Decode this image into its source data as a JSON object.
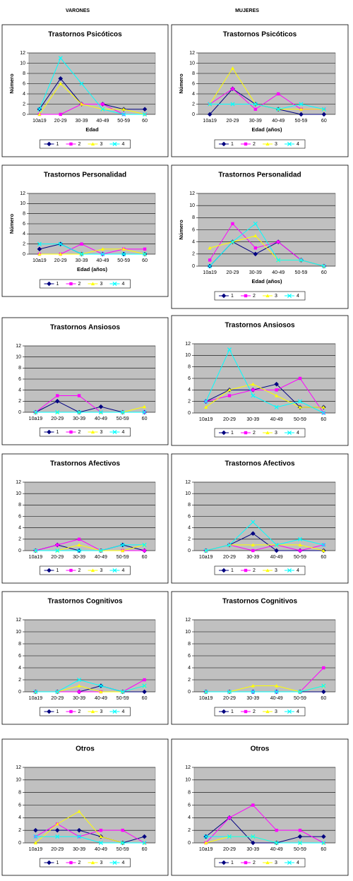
{
  "headers": {
    "left": "VARONES",
    "right": "MUJERES"
  },
  "chart_data": [
    {
      "type": "line",
      "title": "Trastornos Psicóticos",
      "ylabel": "Número",
      "xlabel": "Edad",
      "categories": [
        "10a19",
        "20-29",
        "30-39",
        "40-49",
        "50-59",
        "60"
      ],
      "ylim": [
        0,
        12
      ],
      "yticks": [
        0,
        2,
        4,
        6,
        8,
        10,
        12
      ],
      "grid": true,
      "series": [
        {
          "name": "1",
          "color": "#000080",
          "values": [
            1,
            7,
            2,
            2,
            1,
            1
          ]
        },
        {
          "name": "2",
          "color": "#ff00ff",
          "values": [
            0,
            0,
            2,
            2,
            0,
            0
          ]
        },
        {
          "name": "3",
          "color": "#ffff00",
          "values": [
            0,
            6,
            2,
            1,
            1,
            0
          ]
        },
        {
          "name": "4",
          "color": "#00ffff",
          "values": [
            1,
            11,
            6,
            1,
            0,
            0
          ]
        }
      ]
    },
    {
      "type": "line",
      "title": "Trastornos Psicóticos",
      "ylabel": "Número",
      "xlabel": "Edad (años)",
      "categories": [
        "10a19",
        "20-29",
        "30-39",
        "40-49",
        "50-59",
        "60"
      ],
      "ylim": [
        0,
        12
      ],
      "yticks": [
        0,
        2,
        4,
        6,
        8,
        10,
        12
      ],
      "grid": true,
      "series": [
        {
          "name": "1",
          "color": "#000080",
          "values": [
            0,
            5,
            2,
            1,
            0,
            0
          ]
        },
        {
          "name": "2",
          "color": "#ff00ff",
          "values": [
            2,
            5,
            1,
            4,
            1,
            1
          ]
        },
        {
          "name": "3",
          "color": "#ffff00",
          "values": [
            2,
            9,
            2,
            1,
            1,
            1
          ]
        },
        {
          "name": "4",
          "color": "#00ffff",
          "values": [
            2,
            2,
            2,
            1,
            2,
            1
          ]
        }
      ]
    },
    {
      "type": "line",
      "title": "Trastornos Personalidad",
      "ylabel": "Número",
      "xlabel": "Edad (años)",
      "categories": [
        "10a19",
        "20-29",
        "30-39",
        "40-49",
        "50-59",
        "60"
      ],
      "ylim": [
        0,
        12
      ],
      "yticks": [
        0,
        2,
        4,
        6,
        8,
        10,
        12
      ],
      "grid": true,
      "series": [
        {
          "name": "1",
          "color": "#000080",
          "values": [
            1,
            2,
            0,
            0,
            0,
            0
          ]
        },
        {
          "name": "2",
          "color": "#ff00ff",
          "values": [
            0,
            0,
            2,
            0,
            1,
            1
          ]
        },
        {
          "name": "3",
          "color": "#ffff00",
          "values": [
            0,
            0,
            0,
            1,
            1,
            0
          ]
        },
        {
          "name": "4",
          "color": "#00ffff",
          "values": [
            2,
            2,
            0,
            0,
            0,
            0
          ]
        }
      ]
    },
    {
      "type": "line",
      "title": "Trastornos Personalidad",
      "ylabel": "Número",
      "xlabel": "Edad (años)",
      "categories": [
        "10a19",
        "20-29",
        "30-39",
        "40-49",
        "50-59",
        "60"
      ],
      "ylim": [
        0,
        12
      ],
      "yticks": [
        0,
        2,
        4,
        6,
        8,
        10,
        12
      ],
      "grid": true,
      "series": [
        {
          "name": "1",
          "color": "#000080",
          "values": [
            0,
            4,
            2,
            4,
            1,
            0
          ]
        },
        {
          "name": "2",
          "color": "#ff00ff",
          "values": [
            1,
            7,
            3,
            4,
            1,
            0
          ]
        },
        {
          "name": "3",
          "color": "#ffff00",
          "values": [
            3,
            4,
            5,
            1,
            1,
            0
          ]
        },
        {
          "name": "4",
          "color": "#00ffff",
          "values": [
            0,
            4,
            7,
            1,
            1,
            0
          ]
        }
      ]
    },
    {
      "type": "line",
      "title": "Trastornos Ansiosos",
      "categories": [
        "10a19",
        "20-29",
        "30-39",
        "40-49",
        "50-59",
        "60"
      ],
      "ylim": [
        0,
        12
      ],
      "yticks": [
        0,
        2,
        4,
        6,
        8,
        10,
        12
      ],
      "grid": true,
      "series": [
        {
          "name": "1",
          "color": "#000080",
          "values": [
            0,
            2,
            0,
            1,
            0,
            0
          ]
        },
        {
          "name": "2",
          "color": "#ff00ff",
          "values": [
            0,
            3,
            3,
            0,
            0,
            0
          ]
        },
        {
          "name": "3",
          "color": "#ffff00",
          "values": [
            0,
            0,
            0,
            0,
            0,
            1
          ]
        },
        {
          "name": "4",
          "color": "#00ffff",
          "values": [
            0,
            0,
            0,
            0,
            0,
            0
          ]
        }
      ]
    },
    {
      "type": "line",
      "title": "Trastornos Ansiosos",
      "categories": [
        "10a19",
        "20-29",
        "30-39",
        "40-49",
        "50-59",
        "60"
      ],
      "ylim": [
        0,
        12
      ],
      "yticks": [
        0,
        2,
        4,
        6,
        8,
        10,
        12
      ],
      "grid": true,
      "series": [
        {
          "name": "1",
          "color": "#000080",
          "values": [
            2,
            4,
            4,
            5,
            1,
            1
          ]
        },
        {
          "name": "2",
          "color": "#ff00ff",
          "values": [
            2,
            3,
            4,
            4,
            6,
            0
          ]
        },
        {
          "name": "3",
          "color": "#ffff00",
          "values": [
            1,
            4,
            5,
            3,
            1,
            1
          ]
        },
        {
          "name": "4",
          "color": "#00ffff",
          "values": [
            2,
            11,
            3,
            1,
            2,
            0
          ]
        }
      ]
    },
    {
      "type": "line",
      "title": "Trastornos Afectivos",
      "categories": [
        "10a19",
        "20-29",
        "30-39",
        "40-49",
        "50-59",
        "60"
      ],
      "ylim": [
        0,
        12
      ],
      "yticks": [
        0,
        2,
        4,
        6,
        8,
        10,
        12
      ],
      "grid": true,
      "series": [
        {
          "name": "1",
          "color": "#000080",
          "values": [
            0,
            1,
            0,
            0,
            1,
            0
          ]
        },
        {
          "name": "2",
          "color": "#ff00ff",
          "values": [
            0,
            1,
            2,
            0,
            0,
            0
          ]
        },
        {
          "name": "3",
          "color": "#ffff00",
          "values": [
            0,
            0,
            1,
            0,
            0,
            1
          ]
        },
        {
          "name": "4",
          "color": "#00ffff",
          "values": [
            0,
            0,
            0,
            0,
            1,
            1
          ]
        }
      ]
    },
    {
      "type": "line",
      "title": "Trastornos Afectivos",
      "categories": [
        "10a19",
        "20-29",
        "30-39",
        "40-49",
        "50-59",
        "60"
      ],
      "ylim": [
        0,
        12
      ],
      "yticks": [
        0,
        2,
        4,
        6,
        8,
        10,
        12
      ],
      "grid": true,
      "series": [
        {
          "name": "1",
          "color": "#000080",
          "values": [
            0,
            1,
            3,
            0,
            0,
            0
          ]
        },
        {
          "name": "2",
          "color": "#ff00ff",
          "values": [
            0,
            1,
            0,
            1,
            0,
            1
          ]
        },
        {
          "name": "3",
          "color": "#ffff00",
          "values": [
            0,
            1,
            1,
            1,
            1,
            0
          ]
        },
        {
          "name": "4",
          "color": "#00ffff",
          "values": [
            0,
            1,
            5,
            1,
            2,
            1
          ]
        }
      ]
    },
    {
      "type": "line",
      "title": "Trastornos Cognitivos",
      "categories": [
        "10a19",
        "20-29",
        "30-39",
        "40-49",
        "50-59",
        "60"
      ],
      "ylim": [
        0,
        12
      ],
      "yticks": [
        0,
        2,
        4,
        6,
        8,
        10,
        12
      ],
      "grid": true,
      "series": [
        {
          "name": "1",
          "color": "#000080",
          "values": [
            0,
            0,
            0,
            1,
            0,
            0
          ]
        },
        {
          "name": "2",
          "color": "#ff00ff",
          "values": [
            0,
            0,
            0,
            0,
            0,
            2
          ]
        },
        {
          "name": "3",
          "color": "#ffff00",
          "values": [
            0,
            0,
            1,
            0,
            0,
            1
          ]
        },
        {
          "name": "4",
          "color": "#00ffff",
          "values": [
            0,
            0,
            2,
            1,
            0,
            1
          ]
        }
      ]
    },
    {
      "type": "line",
      "title": "Trastornos Cognitivos",
      "categories": [
        "10a19",
        "20-29",
        "30-39",
        "40-49",
        "50-59",
        "60"
      ],
      "ylim": [
        0,
        12
      ],
      "yticks": [
        0,
        2,
        4,
        6,
        8,
        10,
        12
      ],
      "grid": true,
      "series": [
        {
          "name": "1",
          "color": "#000080",
          "values": [
            0,
            0,
            0,
            0,
            0,
            0
          ]
        },
        {
          "name": "2",
          "color": "#ff00ff",
          "values": [
            0,
            0,
            0,
            0,
            0,
            4
          ]
        },
        {
          "name": "3",
          "color": "#ffff00",
          "values": [
            0,
            0,
            1,
            1,
            0,
            1
          ]
        },
        {
          "name": "4",
          "color": "#00ffff",
          "values": [
            0,
            0,
            0,
            0,
            0,
            1
          ]
        }
      ]
    },
    {
      "type": "line",
      "title": "Otros",
      "categories": [
        "10a19",
        "20-29",
        "30-39",
        "40-49",
        "50-59",
        "60"
      ],
      "ylim": [
        0,
        12
      ],
      "yticks": [
        0,
        2,
        4,
        6,
        8,
        10,
        12
      ],
      "grid": true,
      "series": [
        {
          "name": "1",
          "color": "#000080",
          "values": [
            2,
            2,
            2,
            1,
            0,
            1
          ]
        },
        {
          "name": "2",
          "color": "#ff00ff",
          "values": [
            1,
            3,
            1,
            2,
            2,
            0
          ]
        },
        {
          "name": "3",
          "color": "#ffff00",
          "values": [
            0,
            3,
            5,
            1,
            0,
            0
          ]
        },
        {
          "name": "4",
          "color": "#00ffff",
          "values": [
            1,
            1,
            1,
            0,
            0,
            0
          ]
        }
      ]
    },
    {
      "type": "line",
      "title": "Otros",
      "categories": [
        "10a19",
        "20-29",
        "30-39",
        "40-49",
        "50-59",
        "60"
      ],
      "ylim": [
        0,
        12
      ],
      "yticks": [
        0,
        2,
        4,
        6,
        8,
        10,
        12
      ],
      "grid": true,
      "series": [
        {
          "name": "1",
          "color": "#000080",
          "values": [
            1,
            4,
            0,
            0,
            1,
            1
          ]
        },
        {
          "name": "2",
          "color": "#ff00ff",
          "values": [
            0,
            4,
            6,
            2,
            2,
            0
          ]
        },
        {
          "name": "3",
          "color": "#ffff00",
          "values": [
            0,
            1,
            1,
            0,
            0,
            0
          ]
        },
        {
          "name": "4",
          "color": "#00ffff",
          "values": [
            1,
            1,
            1,
            0,
            0,
            0
          ]
        }
      ]
    }
  ]
}
